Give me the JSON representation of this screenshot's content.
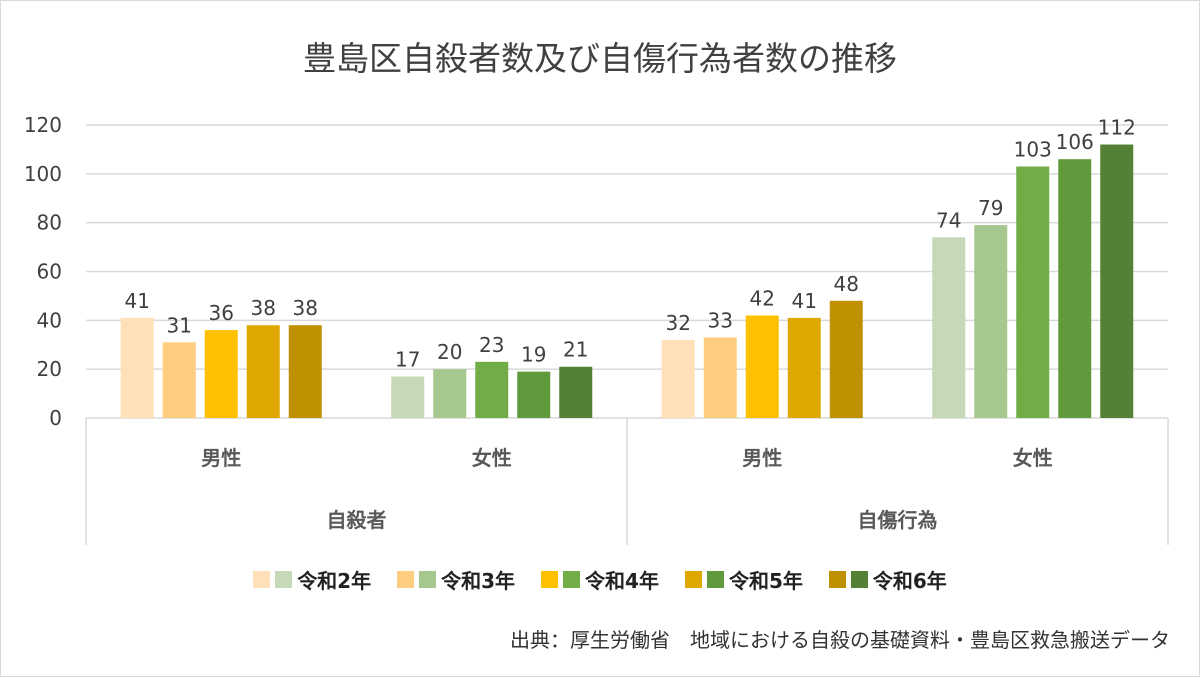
{
  "chart_data": {
    "type": "bar",
    "title": "豊島区自殺者数及び自傷行為者数の推移",
    "groups": [
      {
        "name": "自殺者",
        "categories": [
          "男性",
          "女性"
        ]
      },
      {
        "name": "自傷行為",
        "categories": [
          "男性",
          "女性"
        ]
      }
    ],
    "series": [
      {
        "name": "令和2年",
        "values": [
          41,
          17,
          32,
          74
        ]
      },
      {
        "name": "令和3年",
        "values": [
          31,
          20,
          33,
          79
        ]
      },
      {
        "name": "令和4年",
        "values": [
          36,
          23,
          42,
          103
        ]
      },
      {
        "name": "令和5年",
        "values": [
          38,
          19,
          41,
          106
        ]
      },
      {
        "name": "令和6年",
        "values": [
          38,
          21,
          48,
          112
        ]
      }
    ],
    "colors": {
      "male": [
        "#FFE0B8",
        "#FFCD80",
        "#FFC000",
        "#DFA800",
        "#BF9000"
      ],
      "female": [
        "#C5D9B8",
        "#A6C78D",
        "#70AD47",
        "#5F9B3C",
        "#538135"
      ]
    },
    "ylim": [
      0,
      120
    ],
    "yticks": [
      0,
      20,
      40,
      60,
      80,
      100,
      120
    ],
    "grid": true,
    "legend": "bottom",
    "xlabel": "",
    "ylabel": ""
  },
  "source": "出典：厚生労働省　地域における自殺の基礎資料・豊島区救急搬送データ"
}
